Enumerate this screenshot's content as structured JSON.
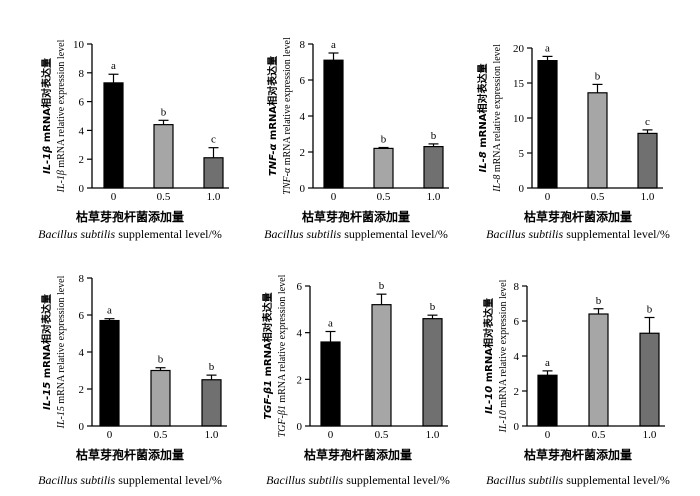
{
  "figure": {
    "xlabel_cn": "枯草芽孢杆菌添加量",
    "xlabel_en_italic": "Bacillus subtilis",
    "xlabel_en_rest": " supplemental level/%"
  },
  "colors": {
    "bar_fills": [
      "#000000",
      "#a6a6a6",
      "#707070"
    ],
    "axis": "#000000"
  },
  "chart_data": [
    {
      "type": "bar",
      "categories": [
        "0",
        "0.5",
        "1.0"
      ],
      "values": [
        7.3,
        4.4,
        2.1
      ],
      "errors": [
        0.6,
        0.3,
        0.7
      ],
      "significance": [
        "a",
        "b",
        "c"
      ],
      "ylim": [
        0,
        10
      ],
      "yticks": [
        0,
        2,
        4,
        6,
        8,
        10
      ],
      "ylabel_cn_italic": "IL-1β",
      "ylabel_cn_rest": " mRNA相对表达量",
      "ylabel_en_italic": "IL-1β",
      "ylabel_en_rest": " mRNA relative expression level"
    },
    {
      "type": "bar",
      "categories": [
        "0",
        "0.5",
        "1.0"
      ],
      "values": [
        7.1,
        2.2,
        2.3
      ],
      "errors": [
        0.4,
        0.05,
        0.15
      ],
      "significance": [
        "a",
        "b",
        "b"
      ],
      "ylim": [
        0,
        8
      ],
      "yticks": [
        0,
        2,
        4,
        6,
        8
      ],
      "ylabel_cn_italic": "TNF-α",
      "ylabel_cn_rest": " mRNA相对表达量",
      "ylabel_en_italic": "TNF-α",
      "ylabel_en_rest": " mRNA relative expression level"
    },
    {
      "type": "bar",
      "categories": [
        "0",
        "0.5",
        "1.0"
      ],
      "values": [
        18.2,
        13.6,
        7.8
      ],
      "errors": [
        0.6,
        1.2,
        0.5
      ],
      "significance": [
        "a",
        "b",
        "c"
      ],
      "ylim": [
        0,
        20
      ],
      "yticks": [
        0,
        5,
        10,
        15,
        20
      ],
      "ylabel_cn_italic": "IL-8",
      "ylabel_cn_rest": " mRNA相对表达量",
      "ylabel_en_italic": "IL-8",
      "ylabel_en_rest": " mRNA relative expression level"
    },
    {
      "type": "bar",
      "categories": [
        "0",
        "0.5",
        "1.0"
      ],
      "values": [
        5.7,
        3.0,
        2.5
      ],
      "errors": [
        0.1,
        0.15,
        0.25
      ],
      "significance": [
        "a",
        "b",
        "b"
      ],
      "ylim": [
        0,
        8
      ],
      "yticks": [
        0,
        2,
        4,
        6,
        8
      ],
      "ylabel_cn_italic": "IL-15",
      "ylabel_cn_rest": " mRNA相对表达量",
      "ylabel_en_italic": "IL-15",
      "ylabel_en_rest": " mRNA relative expression level"
    },
    {
      "type": "bar",
      "categories": [
        "0",
        "0.5",
        "1.0"
      ],
      "values": [
        3.6,
        5.2,
        4.6
      ],
      "errors": [
        0.45,
        0.45,
        0.15
      ],
      "significance": [
        "a",
        "b",
        "b"
      ],
      "ylim": [
        0,
        6
      ],
      "yticks": [
        0,
        2,
        4,
        6
      ],
      "ylabel_cn_italic": "TGF-β1",
      "ylabel_cn_rest": " mRNA相对表达量",
      "ylabel_en_italic": "TGF-β1",
      "ylabel_en_rest": " mRNA relative expression level"
    },
    {
      "type": "bar",
      "categories": [
        "0",
        "0.5",
        "1.0"
      ],
      "values": [
        2.9,
        6.4,
        5.3
      ],
      "errors": [
        0.25,
        0.3,
        0.9
      ],
      "significance": [
        "a",
        "b",
        "b"
      ],
      "ylim": [
        0,
        8
      ],
      "yticks": [
        0,
        2,
        4,
        6,
        8
      ],
      "ylabel_cn_italic": "IL-10",
      "ylabel_cn_rest": " mRNA相对表达量",
      "ylabel_en_italic": "IL-10",
      "ylabel_en_rest": " mRNA relative expression level"
    }
  ]
}
